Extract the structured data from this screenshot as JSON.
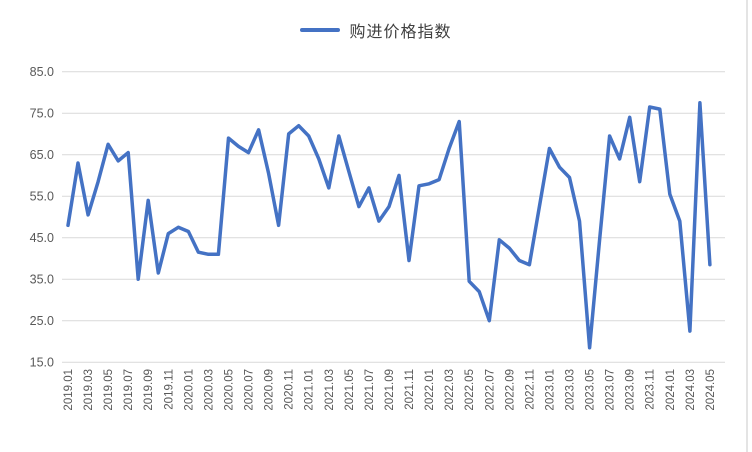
{
  "legend": {
    "label": "购进价格指数"
  },
  "colors": {
    "line": "#4472C4",
    "grid": "#D9D9D9",
    "axis_text": "#595959",
    "legend_text": "#404040",
    "border": "#C9C9C9"
  },
  "chart_data": {
    "type": "line",
    "title": "",
    "legend_position": "top",
    "grid": true,
    "ylim": [
      15,
      85
    ],
    "yticks": [
      85,
      75,
      65,
      55,
      45,
      35,
      25,
      15
    ],
    "ytick_labels": [
      "85.0",
      "75.0",
      "65.0",
      "55.0",
      "45.0",
      "35.0",
      "25.0",
      "15.0"
    ],
    "x_label_step": 2,
    "x": [
      "2019.01",
      "2019.02",
      "2019.03",
      "2019.04",
      "2019.05",
      "2019.06",
      "2019.07",
      "2019.08",
      "2019.09",
      "2019.10",
      "2019.11",
      "2019.12",
      "2020.01",
      "2020.02",
      "2020.03",
      "2020.04",
      "2020.05",
      "2020.06",
      "2020.07",
      "2020.08",
      "2020.09",
      "2020.10",
      "2020.11",
      "2020.12",
      "2021.01",
      "2021.02",
      "2021.03",
      "2021.04",
      "2021.05",
      "2021.06",
      "2021.07",
      "2021.08",
      "2021.09",
      "2021.10",
      "2021.11",
      "2021.12",
      "2022.01",
      "2022.02",
      "2022.03",
      "2022.04",
      "2022.05",
      "2022.06",
      "2022.07",
      "2022.08",
      "2022.09",
      "2022.10",
      "2022.11",
      "2022.12",
      "2023.01",
      "2023.02",
      "2023.03",
      "2023.04",
      "2023.05",
      "2023.06",
      "2023.07",
      "2023.08",
      "2023.09",
      "2023.10",
      "2023.11",
      "2023.12",
      "2024.01",
      "2024.02",
      "2024.03",
      "2024.04",
      "2024.05"
    ],
    "series": [
      {
        "name": "购进价格指数",
        "values": [
          48,
          63,
          50.5,
          58.5,
          67.5,
          63.5,
          65.5,
          35,
          54,
          36.5,
          46,
          47.5,
          46.5,
          41.5,
          41,
          41,
          69,
          67,
          65.5,
          71,
          60.5,
          48,
          70,
          72,
          69.5,
          64,
          57,
          69.5,
          61,
          52.5,
          57,
          49,
          52.5,
          60,
          39.5,
          57.5,
          58,
          59,
          66.5,
          73,
          34.5,
          32,
          25,
          44.5,
          42.5,
          39.5,
          38.5,
          52.5,
          66.5,
          62,
          59.5,
          49,
          18.5,
          44.5,
          69.5,
          64,
          74,
          58.5,
          76.5,
          76,
          55.5,
          49,
          22.5,
          77.5,
          38.5
        ]
      }
    ]
  }
}
